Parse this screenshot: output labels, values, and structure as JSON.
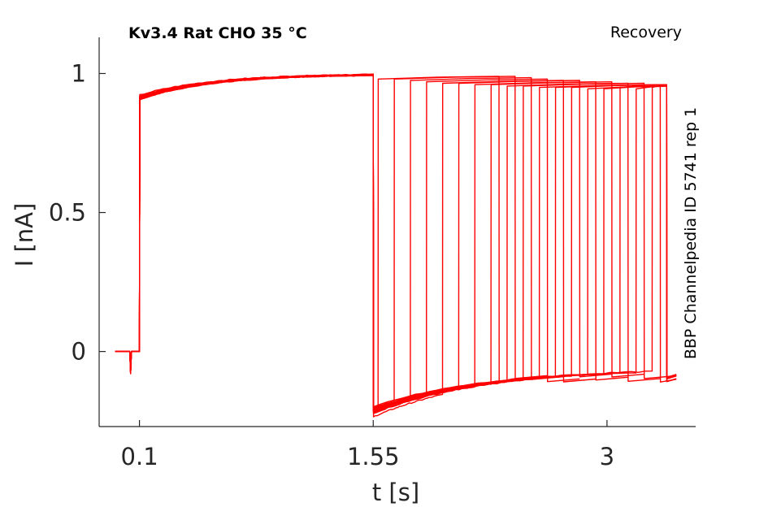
{
  "chart_data": {
    "type": "line",
    "title": "Kv3.4  Rat  CHO  35 °C",
    "annotation_right": "Recovery",
    "side_label": "BBP Channelpedia ID 5741 rep 1",
    "xlabel": "t [s]",
    "ylabel": "I [nA]",
    "xlim": [
      -0.15,
      3.55
    ],
    "ylim": [
      -0.27,
      1.13
    ],
    "x_ticks": [
      0.1,
      1.55,
      3
    ],
    "x_tick_labels": [
      "0.1",
      "1.55",
      "3"
    ],
    "y_ticks": [
      0,
      0.5,
      1
    ],
    "y_tick_labels": [
      "0",
      "0.5",
      "1"
    ],
    "grid": false,
    "legend": "none",
    "line_color": "#ff0000",
    "axis_color": "#262626",
    "protocol": {
      "holding_current": 0.0,
      "prepulse_start": 0.1,
      "prepulse_end": 1.55,
      "prepulse_peak_start": 0.92,
      "prepulse_peak_end": 0.995,
      "recovery_step_times": [
        1.58,
        1.68,
        1.78,
        1.88,
        1.98,
        2.08,
        2.18,
        2.28,
        2.38,
        2.48,
        2.58,
        2.68,
        2.78,
        2.88,
        2.98,
        3.08,
        3.18,
        3.28
      ],
      "test_pulse_end_offset": 1.55,
      "recovery_min_current": -0.21,
      "recovery_steady_current": -0.06,
      "test_peak_values": [
        0.99,
        0.99,
        0.985,
        0.98,
        0.975,
        0.975,
        0.97,
        0.97,
        0.965,
        0.965,
        0.96,
        0.96,
        0.96,
        0.955,
        0.955,
        0.96,
        0.955,
        0.96
      ],
      "trace_end": 3.43
    }
  }
}
